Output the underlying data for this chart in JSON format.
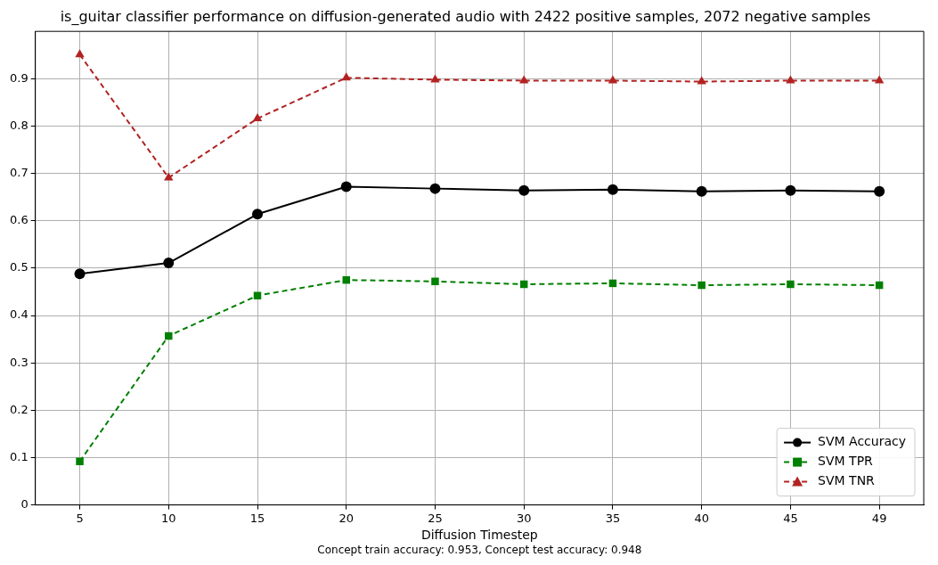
{
  "chart_data": {
    "type": "line",
    "title": "is_guitar classifier performance on diffusion-generated audio with 2422 positive samples, 2072 negative samples",
    "xlabel": "Diffusion Timestep",
    "annotations": [
      "Concept train accuracy: 0.953, Concept test accuracy: 0.948"
    ],
    "categories": [
      "5",
      "10",
      "15",
      "20",
      "25",
      "30",
      "35",
      "40",
      "45",
      "49"
    ],
    "series": [
      {
        "name": "SVM Accuracy",
        "color": "#000000",
        "marker": "circle",
        "line_style": "solid",
        "values": [
          0.488,
          0.511,
          0.614,
          0.672,
          0.668,
          0.664,
          0.666,
          0.662,
          0.664,
          0.662
        ]
      },
      {
        "name": "SVM TPR",
        "color": "#008000",
        "marker": "square",
        "line_style": "dashed",
        "values": [
          0.092,
          0.357,
          0.442,
          0.475,
          0.472,
          0.466,
          0.468,
          0.464,
          0.466,
          0.464
        ]
      },
      {
        "name": "SVM TNR",
        "color": "#b22222",
        "marker": "triangle",
        "line_style": "dashed",
        "values": [
          0.951,
          0.691,
          0.816,
          0.902,
          0.898,
          0.896,
          0.896,
          0.894,
          0.896,
          0.896
        ]
      }
    ],
    "ylim": [
      0,
      1
    ],
    "yticks": [
      0,
      0.1,
      0.2,
      0.3,
      0.4,
      0.5,
      0.6,
      0.7,
      0.8,
      0.9
    ],
    "grid": true,
    "legend": "bottom right"
  }
}
